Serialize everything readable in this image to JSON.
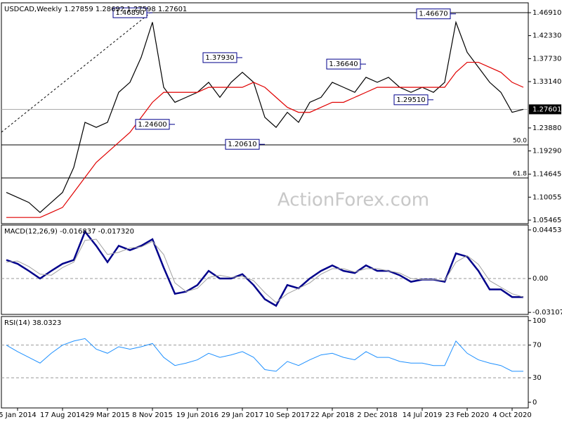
{
  "watermark": "ActionForex.com",
  "chart_data": [
    {
      "type": "line",
      "title": "USDCAD,Weekly 1.27859 1.28692 1.27598 1.27601",
      "ylim": [
        1.0476,
        1.4888
      ],
      "yticks": [
        {
          "value": 1.4691,
          "label": "1.46910"
        },
        {
          "value": 1.4233,
          "label": "1.42330"
        },
        {
          "value": 1.3773,
          "label": "1.37730"
        },
        {
          "value": 1.3314,
          "label": "1.33140"
        },
        {
          "value": 1.2388,
          "label": "1.23880"
        },
        {
          "value": 1.1929,
          "label": "1.19290"
        },
        1.14645,
        {
          "value": 1.10055,
          "label": "1.10055"
        },
        1.05465
      ],
      "current_price": 1.27601,
      "top_line": 1.4691,
      "fib_levels": [
        {
          "value": 1.205,
          "label": "50.0"
        },
        {
          "value": 1.139,
          "label": "61.8"
        }
      ],
      "annotations": [
        {
          "value": 1.4689,
          "label": "1.46890",
          "at": 13
        },
        {
          "value": 1.246,
          "label": "1.24600",
          "at": 15
        },
        {
          "value": 1.3793,
          "label": "1.37930",
          "at": 21
        },
        {
          "value": 1.2061,
          "label": "1.20610",
          "at": 23
        },
        {
          "value": 1.3664,
          "label": "1.36640",
          "at": 32
        },
        {
          "value": 1.2951,
          "label": "1.29510",
          "at": 38
        },
        {
          "value": 1.4667,
          "label": "1.46670",
          "at": 40
        }
      ],
      "series": [
        {
          "color": "#000000",
          "values": [
            1.11,
            1.1,
            1.09,
            1.07,
            1.09,
            1.11,
            1.16,
            1.25,
            1.24,
            1.25,
            1.31,
            1.33,
            1.38,
            1.45,
            1.32,
            1.29,
            1.3,
            1.31,
            1.33,
            1.3,
            1.33,
            1.35,
            1.33,
            1.26,
            1.24,
            1.27,
            1.25,
            1.29,
            1.3,
            1.33,
            1.32,
            1.31,
            1.34,
            1.33,
            1.34,
            1.32,
            1.31,
            1.32,
            1.31,
            1.33,
            1.45,
            1.39,
            1.36,
            1.33,
            1.31,
            1.27,
            1.276
          ]
        },
        {
          "color": "#e00000",
          "values": [
            1.06,
            1.06,
            1.06,
            1.06,
            1.07,
            1.08,
            1.11,
            1.14,
            1.17,
            1.19,
            1.21,
            1.23,
            1.26,
            1.29,
            1.31,
            1.31,
            1.31,
            1.31,
            1.32,
            1.32,
            1.32,
            1.32,
            1.33,
            1.32,
            1.3,
            1.28,
            1.27,
            1.27,
            1.28,
            1.29,
            1.29,
            1.3,
            1.31,
            1.32,
            1.32,
            1.32,
            1.32,
            1.32,
            1.32,
            1.32,
            1.35,
            1.37,
            1.37,
            1.36,
            1.35,
            1.33,
            1.32
          ]
        }
      ]
    },
    {
      "type": "line",
      "title": "MACD(12,26,9) -0.016837 -0.017320",
      "ylim": [
        -0.0329,
        0.049
      ],
      "yticks": [
        0.044534,
        {
          "value": 0,
          "label": "0.00"
        },
        -0.031072
      ],
      "levels": [
        0
      ],
      "series": [
        {
          "color": "#00008b",
          "width": 2.5,
          "values": [
            0.017,
            0.0135,
            0.007,
            0,
            0.007,
            0.0135,
            0.017,
            0.043,
            0.03,
            0.015,
            0.03,
            0.026,
            0.03,
            0.036,
            0.01,
            -0.014,
            -0.012,
            -0.006,
            0.007,
            0,
            0,
            0.004,
            -0.006,
            -0.019,
            -0.025,
            -0.006,
            -0.009,
            0,
            0.007,
            0.012,
            0.007,
            0.005,
            0.012,
            0.007,
            0.007,
            0.003,
            -0.003,
            -0.001,
            -0.001,
            -0.003,
            0.023,
            0.02,
            0.007,
            -0.01,
            -0.01,
            -0.017,
            -0.017
          ]
        },
        {
          "color": "#a0a0a0",
          "width": 1,
          "values": [
            0.015,
            0.016,
            0.011,
            0.004,
            0.003,
            0.01,
            0.015,
            0.035,
            0.036,
            0.022,
            0.024,
            0.028,
            0.029,
            0.034,
            0.022,
            -0.004,
            -0.012,
            -0.009,
            0.001,
            0.003,
            0.001,
            0.002,
            -0.002,
            -0.013,
            -0.022,
            -0.014,
            -0.009,
            -0.004,
            0.004,
            0.009,
            0.009,
            0.006,
            0.009,
            0.009,
            0.007,
            0.005,
            0,
            -0.001,
            -0.001,
            -0.002,
            0.015,
            0.021,
            0.013,
            -0.002,
            -0.008,
            -0.014,
            -0.017
          ]
        }
      ]
    },
    {
      "type": "line",
      "title": "RSI(14) 38.0323",
      "ylim": [
        -6.9,
        105
      ],
      "yticks": [
        100,
        70,
        30,
        0
      ],
      "levels": [
        70,
        30
      ],
      "categories": [
        null,
        "5 Jan 2014",
        null,
        null,
        null,
        "17 Aug 2014",
        null,
        null,
        null,
        "29 Mar 2015",
        null,
        null,
        null,
        "8 Nov 2015",
        null,
        null,
        null,
        "19 Jun 2016",
        null,
        null,
        null,
        "29 Jan 2017",
        null,
        null,
        null,
        "10 Sep 2017",
        null,
        null,
        null,
        "22 Apr 2018",
        null,
        null,
        null,
        "2 Dec 2018",
        null,
        null,
        null,
        "14 Jul 2019",
        null,
        null,
        null,
        "23 Feb 2020",
        null,
        null,
        null,
        "4 Oct 2020",
        null
      ],
      "series": [
        {
          "color": "#1e90ff",
          "width": 1,
          "values": [
            70,
            62,
            55,
            48,
            60,
            70,
            75,
            78,
            65,
            60,
            68,
            65,
            68,
            72,
            55,
            45,
            48,
            52,
            60,
            55,
            58,
            62,
            55,
            40,
            38,
            50,
            45,
            52,
            58,
            60,
            55,
            52,
            62,
            55,
            55,
            50,
            48,
            48,
            45,
            45,
            75,
            60,
            52,
            48,
            45,
            38,
            38
          ]
        }
      ]
    }
  ]
}
